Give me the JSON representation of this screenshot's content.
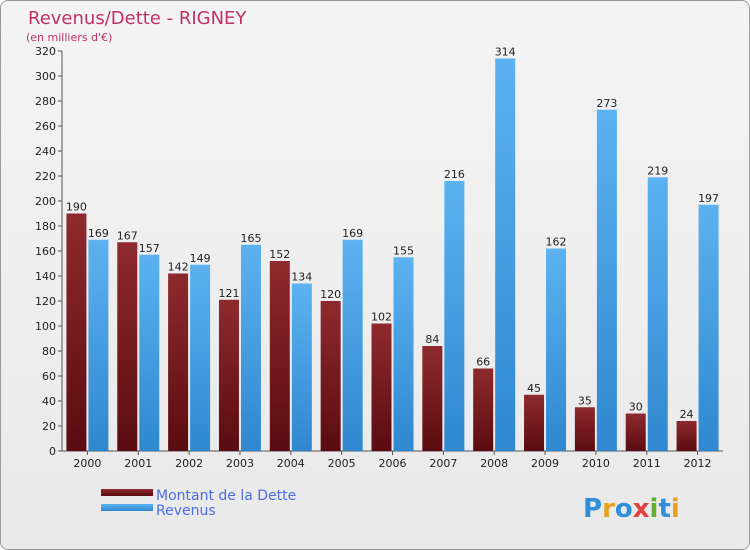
{
  "chart_data": {
    "type": "bar",
    "title": "Revenus/Dette - RIGNEY",
    "subtitle": "(en milliers d'€)",
    "categories": [
      "2000",
      "2001",
      "2002",
      "2003",
      "2004",
      "2005",
      "2006",
      "2007",
      "2008",
      "2009",
      "2010",
      "2011",
      "2012"
    ],
    "series": [
      {
        "name": "Montant de la Dette",
        "color": "#7a1a1e",
        "values": [
          190,
          167,
          142,
          121,
          152,
          120,
          102,
          84,
          66,
          45,
          35,
          30,
          24
        ]
      },
      {
        "name": "Revenus",
        "color": "#4aa3e6",
        "values": [
          169,
          157,
          149,
          165,
          134,
          169,
          155,
          216,
          314,
          162,
          273,
          219,
          197
        ]
      }
    ],
    "ylim": [
      0,
      320
    ],
    "yticks": [
      0,
      20,
      40,
      60,
      80,
      100,
      120,
      140,
      160,
      180,
      200,
      220,
      240,
      260,
      280,
      300,
      320
    ],
    "grid": false,
    "legend": "bottom-left"
  },
  "logo": {
    "text": "Proxiti",
    "letters": [
      "P",
      "r",
      "o",
      "x",
      "i",
      "t",
      "i"
    ],
    "colors": [
      "#2f8fd8",
      "#e8a020",
      "#2f8fd8",
      "#e04040",
      "#60b030",
      "#2f8fd8",
      "#e8a020"
    ]
  }
}
